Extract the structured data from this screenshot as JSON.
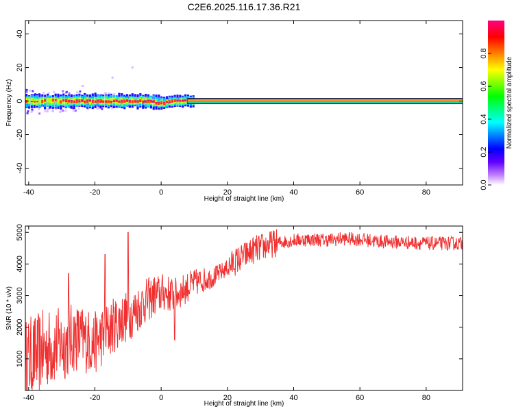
{
  "title": "C2E6.2025.116.17.36.R21",
  "chart_data": [
    {
      "type": "heatmap",
      "xlabel": "Height of straight line (km)",
      "ylabel": "Frequency (Hz)",
      "xlim": [
        -41,
        91
      ],
      "ylim": [
        -50,
        48
      ],
      "xticks": [
        -40,
        -20,
        0,
        20,
        40,
        60,
        80
      ],
      "yticks": [
        -40,
        -20,
        0,
        20,
        40
      ],
      "colorbar": {
        "label": "Normalized spectral amplitude",
        "range": [
          0,
          1
        ],
        "ticks": [
          0.0,
          0.2,
          0.4,
          0.6,
          0.8
        ],
        "colors": [
          "#ffffff",
          "#c080ff",
          "#6000ff",
          "#0000ff",
          "#0080ff",
          "#00ffff",
          "#00ff80",
          "#00ff00",
          "#80ff00",
          "#ffff00",
          "#ff8000",
          "#ff0000",
          "#ff0080"
        ]
      },
      "ridge": {
        "frequency_hz": 0,
        "dip_frequency_hz": -1.5,
        "dip_height_km": 0
      }
    },
    {
      "type": "line",
      "xlabel": "Height of straight line (km)",
      "ylabel": "SNR (10 * v/v)",
      "xlim": [
        -41,
        91
      ],
      "ylim": [
        0,
        5200
      ],
      "xticks": [
        -40,
        -20,
        0,
        20,
        40,
        60,
        80
      ],
      "yticks": [
        1000,
        2000,
        3000,
        4000,
        5000
      ],
      "color": "#f03030",
      "x": [
        -41,
        -38,
        -35,
        -32,
        -29,
        -26,
        -23,
        -20,
        -17,
        -14,
        -11,
        -8,
        -5,
        -2,
        1,
        4,
        7,
        10,
        13,
        16,
        19,
        22,
        25,
        28,
        31,
        34,
        37,
        40,
        45,
        50,
        55,
        60,
        65,
        70,
        75,
        80,
        85,
        91
      ],
      "y": [
        900,
        1100,
        1300,
        1400,
        1500,
        1700,
        1600,
        1500,
        1800,
        2100,
        2300,
        2500,
        2800,
        3000,
        3100,
        3000,
        3200,
        3400,
        3500,
        3600,
        3800,
        4050,
        4250,
        4450,
        4550,
        4650,
        4700,
        4750,
        4780,
        4760,
        4800,
        4780,
        4720,
        4700,
        4680,
        4650,
        4650,
        4650
      ],
      "spikes": [
        {
          "x": -10,
          "y": 5000
        },
        {
          "x": -17,
          "y": 4300
        },
        {
          "x": -28,
          "y": 3700
        },
        {
          "x": 4,
          "y": 1600
        }
      ]
    }
  ]
}
